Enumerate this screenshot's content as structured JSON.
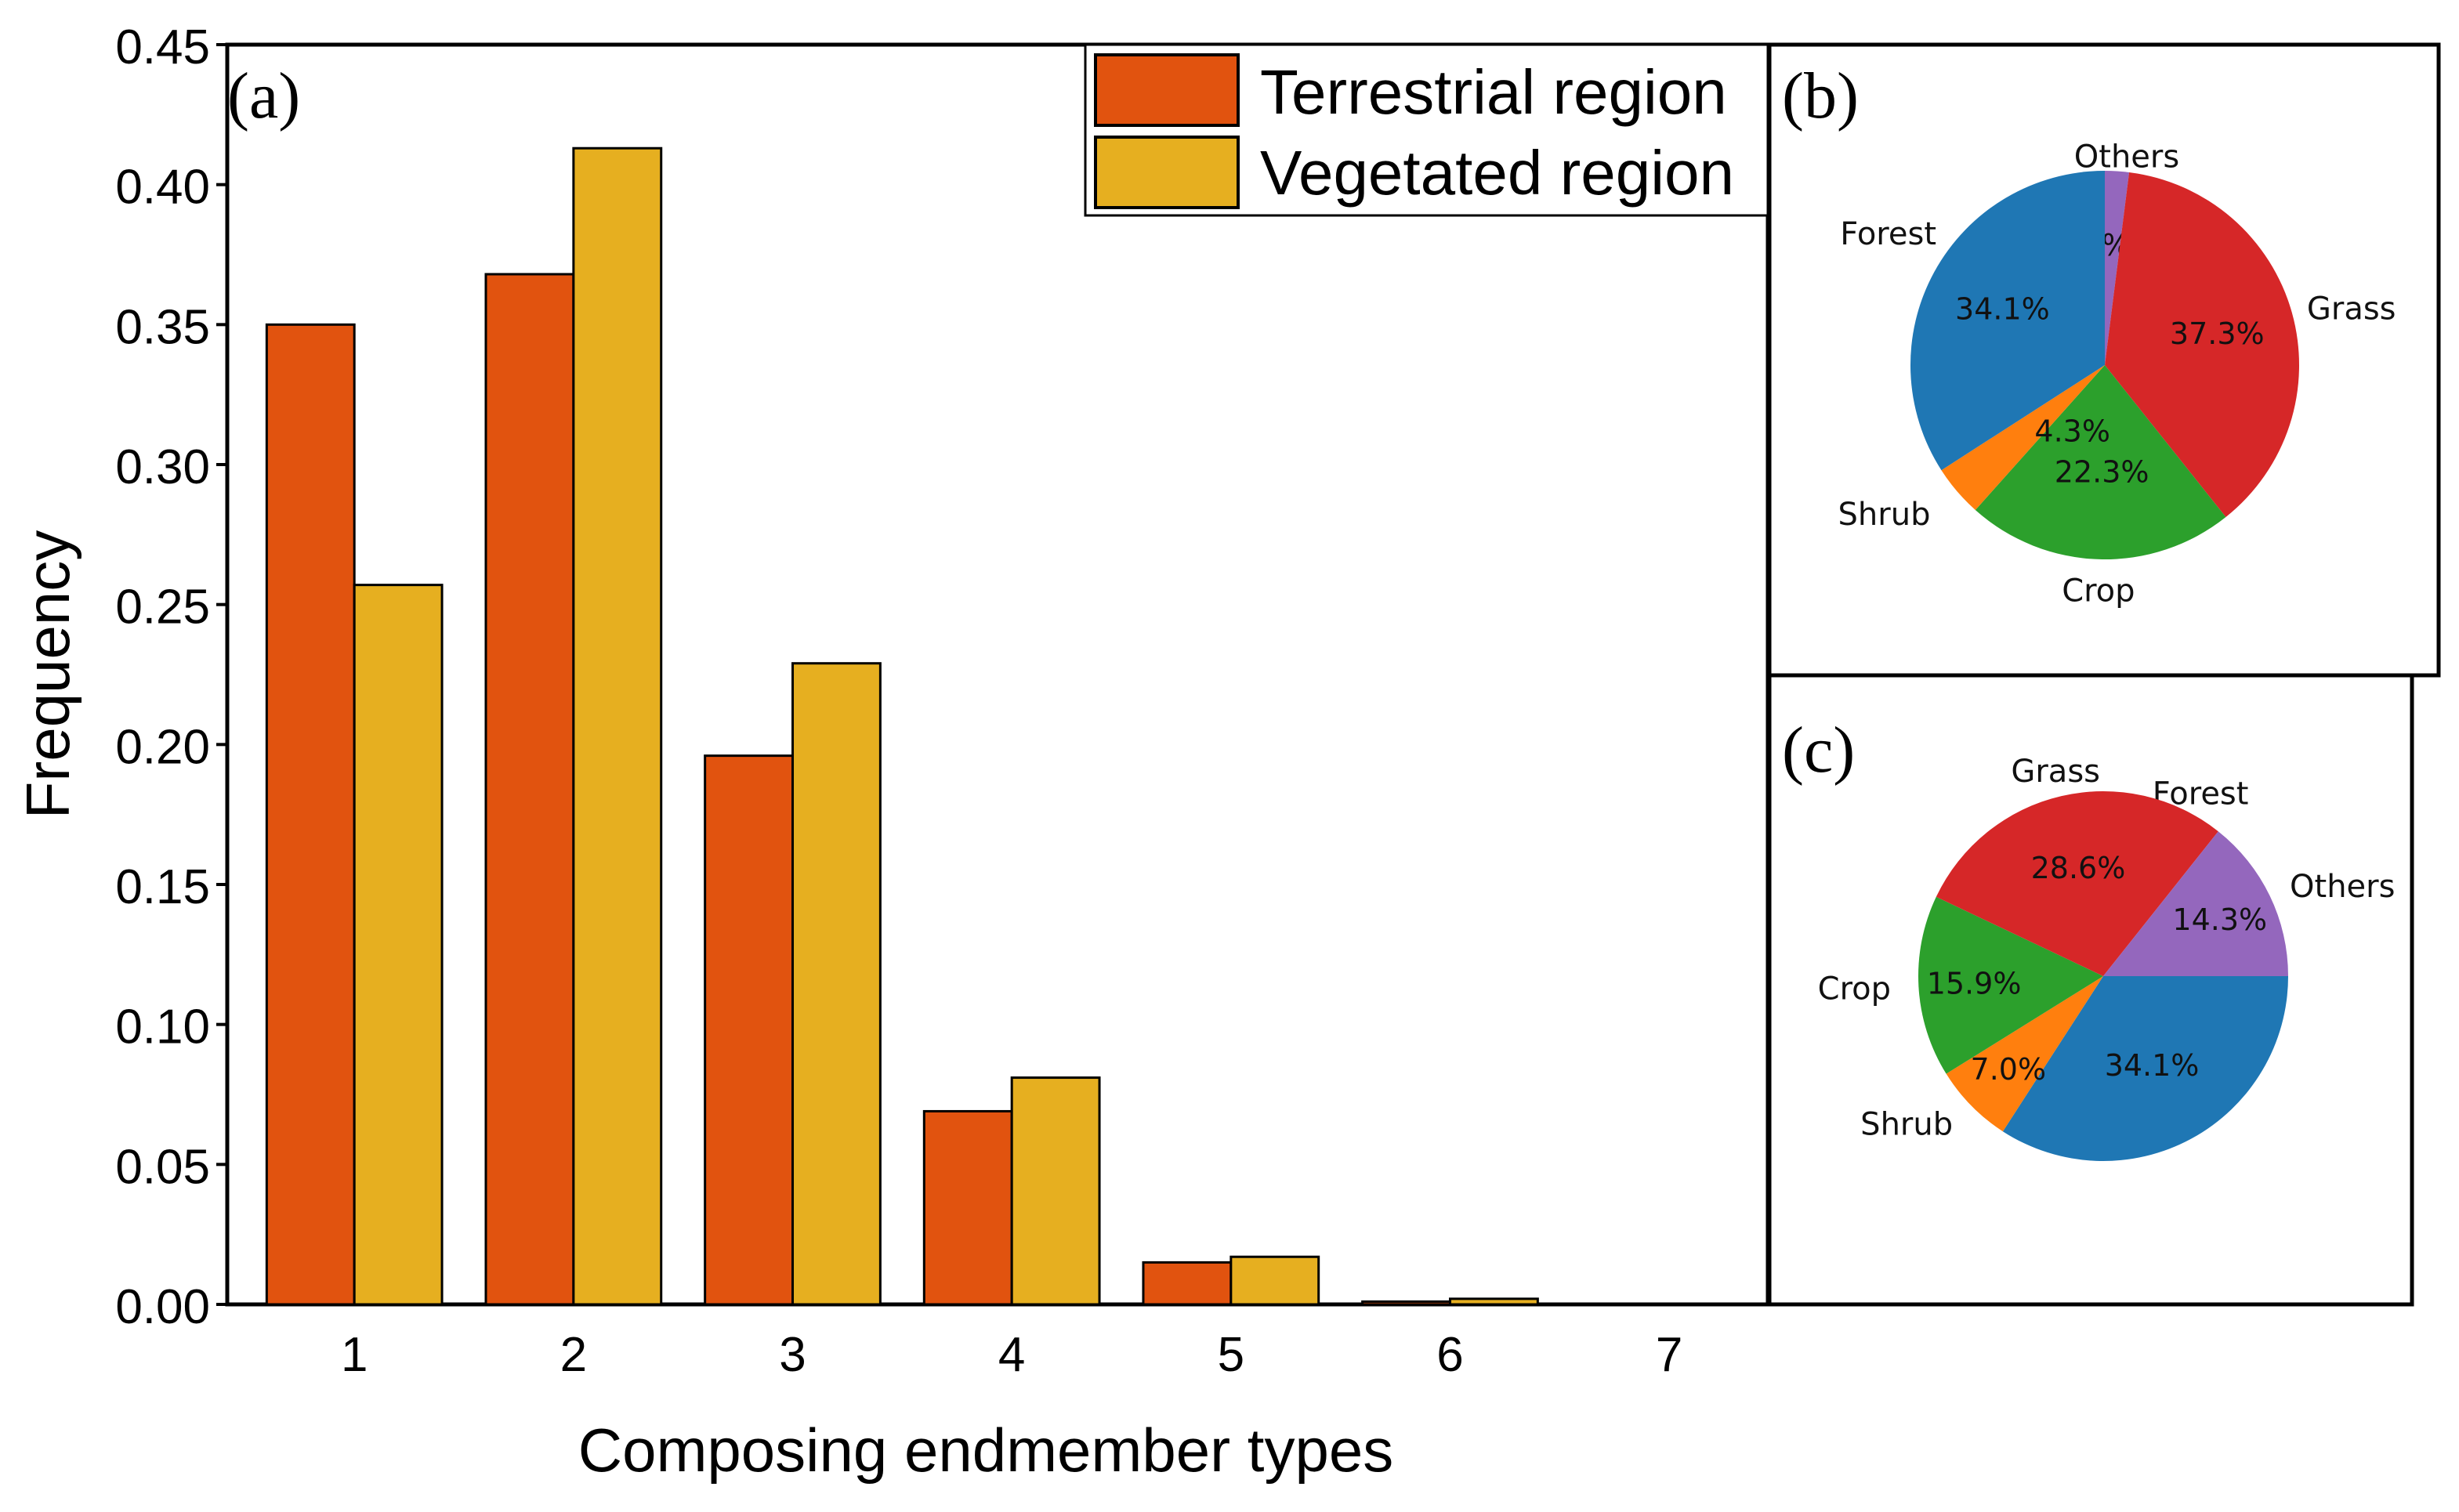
{
  "chart_data": [
    {
      "panel_label": "(a)",
      "type": "bar",
      "categories": [
        "1",
        "2",
        "3",
        "4",
        "5",
        "6",
        "7"
      ],
      "series": [
        {
          "name": "Terrestrial region",
          "values": [
            0.35,
            0.368,
            0.196,
            0.069,
            0.015,
            0.001,
            0.0
          ],
          "color": "#E1530F"
        },
        {
          "name": "Vegetated region",
          "values": [
            0.257,
            0.413,
            0.229,
            0.081,
            0.017,
            0.002,
            0.0
          ],
          "color": "#E6AF20"
        }
      ],
      "xlabel": "Composing endmember types",
      "ylabel": "Frequency",
      "ylim": [
        0,
        0.45
      ],
      "yticks": [
        "0.00",
        "0.05",
        "0.10",
        "0.15",
        "0.20",
        "0.25",
        "0.30",
        "0.35",
        "0.40",
        "0.45"
      ],
      "grid": false,
      "legend": "top-right"
    },
    {
      "panel_label": "(b)",
      "type": "pie",
      "slices": [
        {
          "label": "Others",
          "value": 2.0,
          "pct_text": "2.0%",
          "color": "#9467BD"
        },
        {
          "label": "Grass",
          "value": 37.3,
          "pct_text": "37.3%",
          "color": "#D62728"
        },
        {
          "label": "Crop",
          "value": 22.3,
          "pct_text": "22.3%",
          "color": "#2CA02C"
        },
        {
          "label": "Shrub",
          "value": 4.3,
          "pct_text": "4.3%",
          "color": "#FF7F0E"
        },
        {
          "label": "Forest",
          "value": 34.1,
          "pct_text": "34.1%",
          "color": "#1F77B4"
        }
      ]
    },
    {
      "panel_label": "(c)",
      "type": "pie",
      "slices": [
        {
          "label": "Forest",
          "value": 34.1,
          "pct_text": "34.1%",
          "color": "#1F77B4"
        },
        {
          "label": "Shrub",
          "value": 7.0,
          "pct_text": "7.0%",
          "color": "#FF7F0E"
        },
        {
          "label": "Crop",
          "value": 15.9,
          "pct_text": "15.9%",
          "color": "#2CA02C"
        },
        {
          "label": "Grass",
          "value": 28.6,
          "pct_text": "28.6%",
          "color": "#D62728"
        },
        {
          "label": "Others",
          "value": 14.3,
          "pct_text": "14.3%",
          "color": "#9467BD"
        }
      ]
    }
  ]
}
